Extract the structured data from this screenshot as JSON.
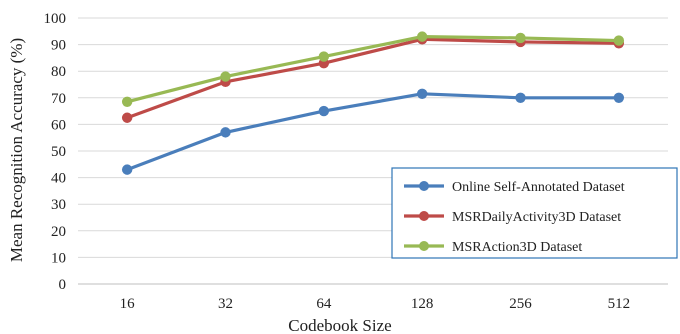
{
  "chart_data": {
    "type": "line",
    "title": "",
    "xlabel": "Codebook Size",
    "ylabel": "Mean Recognition Accuracy (%)",
    "categories": [
      "16",
      "32",
      "64",
      "128",
      "256",
      "512"
    ],
    "ylim": [
      0,
      100
    ],
    "yticks": [
      "0",
      "10",
      "20",
      "30",
      "40",
      "50",
      "60",
      "70",
      "80",
      "90",
      "100"
    ],
    "grid": true,
    "legend_position": "bottom-right",
    "series": [
      {
        "name": "Online Self-Annotated Dataset",
        "color": "#4a7ebb",
        "values": [
          43,
          57,
          65,
          71.5,
          70,
          70
        ]
      },
      {
        "name": "MSRDailyActivity3D Dataset",
        "color": "#be4b48",
        "values": [
          62.5,
          76,
          83,
          92,
          91,
          90.5
        ]
      },
      {
        "name": "MSRAction3D Dataset",
        "color": "#98b954",
        "values": [
          68.5,
          78,
          85.5,
          93,
          92.5,
          91.5
        ]
      }
    ]
  }
}
